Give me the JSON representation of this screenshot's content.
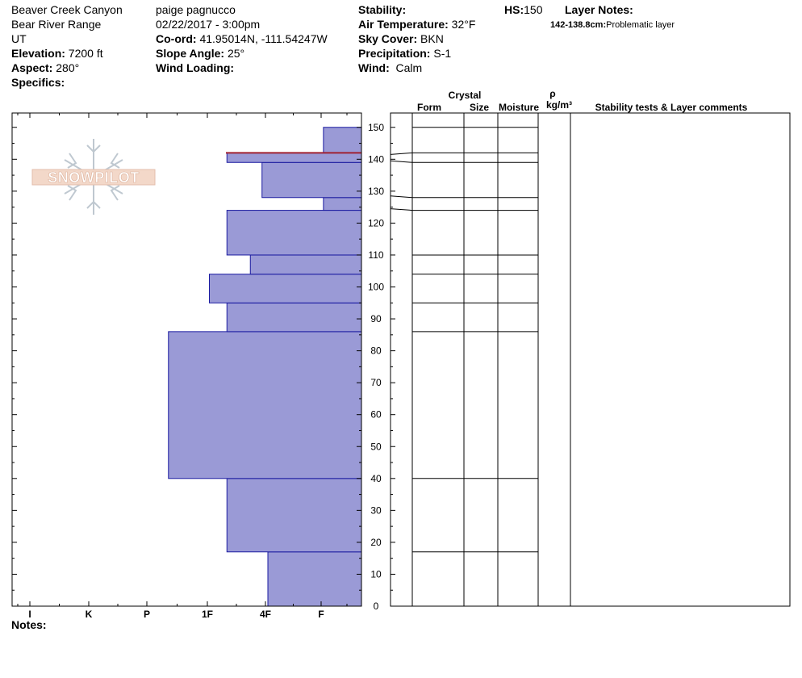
{
  "site": {
    "location": "Beaver Creek Canyon",
    "range": "Bear River Range",
    "state": "UT",
    "elevation_label": "Elevation:",
    "elevation": "7200 ft",
    "aspect_label": "Aspect:",
    "aspect": "280°",
    "specifics_label": "Specifics:"
  },
  "observer": {
    "name": "paige pagnucco",
    "datetime": "02/22/2017 - 3:00pm",
    "coord_label": "Co-ord:",
    "coord": "41.95014N, -111.54247W",
    "slope_label": "Slope Angle:",
    "slope": "25°",
    "wind_loading_label": "Wind Loading:"
  },
  "conditions": {
    "stability_label": "Stability:",
    "air_temp_label": "Air Temperature:",
    "air_temp": "32°F",
    "sky_label": "Sky Cover:",
    "sky": "BKN",
    "precip_label": "Precipitation:",
    "precip": "S-1",
    "wind_label": "Wind:",
    "wind": "Calm"
  },
  "hs": {
    "label": "HS:",
    "value": "150"
  },
  "layer_notes": {
    "title": "Layer Notes:",
    "note_range": "142-138.8cm:",
    "note_text": "Problematic layer"
  },
  "columns": {
    "crystal": "Crystal",
    "form": "Form",
    "size": "Size",
    "moisture": "Moisture",
    "rho": "ρ",
    "density_unit": "kg/m³",
    "comments": "Stability tests & Layer comments"
  },
  "notes_label": "Notes:",
  "logo_text": "SNOWPILOT",
  "colors": {
    "layer_fill": "#9a9ad6",
    "layer_stroke": "#1a1aa0",
    "weak_layer": "#a02030"
  },
  "chart_data": {
    "type": "bar",
    "orientation": "horizontal",
    "hardness_scale": [
      "I",
      "K",
      "P",
      "1F",
      "4F",
      "F"
    ],
    "hardness_axis_note": "hardness increases to the left: F=1, 4F=2, 1F=3, P=4, K=5, I=6",
    "height_ticks": [
      0,
      10,
      20,
      30,
      40,
      50,
      60,
      70,
      80,
      90,
      100,
      110,
      120,
      130,
      140,
      150
    ],
    "ylim": [
      0,
      154
    ],
    "layers": [
      {
        "bottom": 0,
        "top": 17,
        "hardness": 1.6
      },
      {
        "bottom": 17,
        "top": 40,
        "hardness": 2.3
      },
      {
        "bottom": 40,
        "top": 86,
        "hardness": 3.3
      },
      {
        "bottom": 86,
        "top": 95,
        "hardness": 2.3
      },
      {
        "bottom": 95,
        "top": 104,
        "hardness": 2.6
      },
      {
        "bottom": 104,
        "top": 110,
        "hardness": 1.9
      },
      {
        "bottom": 110,
        "top": 124,
        "hardness": 2.3
      },
      {
        "bottom": 124,
        "top": 128,
        "hardness": 0.65
      },
      {
        "bottom": 128,
        "top": 139,
        "hardness": 1.7
      },
      {
        "bottom": 139,
        "top": 142,
        "hardness": 2.3
      },
      {
        "bottom": 142,
        "top": 150,
        "hardness": 0.65
      }
    ],
    "weak_layer_height": 142,
    "table_boundaries": [
      17,
      40,
      86,
      95,
      104,
      110,
      124,
      128,
      139,
      142,
      150
    ]
  }
}
